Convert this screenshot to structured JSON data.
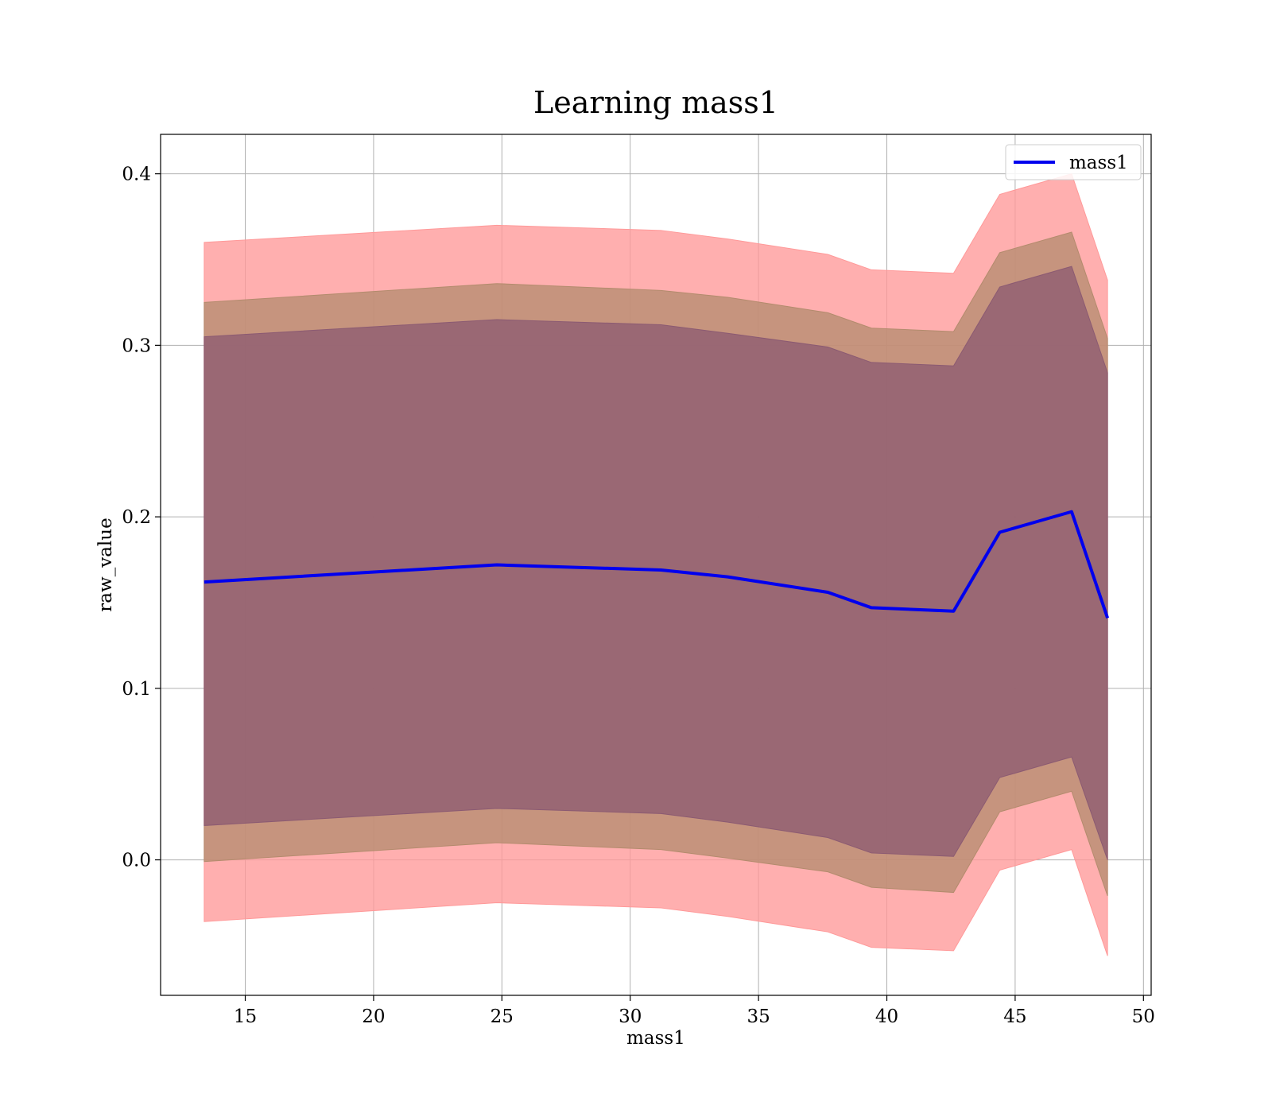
{
  "chart_data": {
    "type": "area",
    "title": "Learning mass1",
    "xlabel": "mass1",
    "ylabel": "raw_value",
    "xlim": [
      11.7,
      50.3
    ],
    "ylim": [
      -0.079,
      0.423
    ],
    "xticks": [
      15,
      20,
      25,
      30,
      35,
      40,
      45,
      50
    ],
    "yticks": [
      0.0,
      0.1,
      0.2,
      0.3,
      0.4
    ],
    "ytick_labels": [
      "0.0",
      "0.1",
      "0.2",
      "0.3",
      "0.4"
    ],
    "grid": true,
    "legend": {
      "position": "top-right",
      "entries": [
        "mass1"
      ]
    },
    "x": [
      13.4,
      24.8,
      31.2,
      33.8,
      37.7,
      39.4,
      42.6,
      44.4,
      47.2,
      48.6
    ],
    "series": [
      {
        "name": "mass1",
        "values": [
          0.162,
          0.172,
          0.169,
          0.165,
          0.156,
          0.147,
          0.145,
          0.191,
          0.203,
          0.141
        ]
      }
    ],
    "bands": [
      {
        "color": "#ff9999",
        "lower": [
          -0.036,
          -0.025,
          -0.028,
          -0.033,
          -0.042,
          -0.051,
          -0.053,
          -0.006,
          0.006,
          -0.056
        ],
        "upper": [
          0.36,
          0.37,
          0.367,
          0.362,
          0.353,
          0.344,
          0.342,
          0.388,
          0.4,
          0.338
        ]
      },
      {
        "color": "#b38b6d",
        "lower": [
          -0.001,
          0.01,
          0.006,
          0.001,
          -0.007,
          -0.016,
          -0.019,
          0.028,
          0.04,
          -0.021
        ],
        "upper": [
          0.325,
          0.336,
          0.332,
          0.328,
          0.319,
          0.31,
          0.308,
          0.354,
          0.366,
          0.304
        ]
      },
      {
        "color": "#8b5a72",
        "lower": [
          0.02,
          0.03,
          0.027,
          0.022,
          0.013,
          0.004,
          0.002,
          0.048,
          0.06,
          0.0
        ],
        "upper": [
          0.305,
          0.315,
          0.312,
          0.307,
          0.299,
          0.29,
          0.288,
          0.334,
          0.346,
          0.284
        ]
      }
    ],
    "colors": {
      "line": "#0000ee",
      "grid": "#b0b0b0"
    }
  }
}
